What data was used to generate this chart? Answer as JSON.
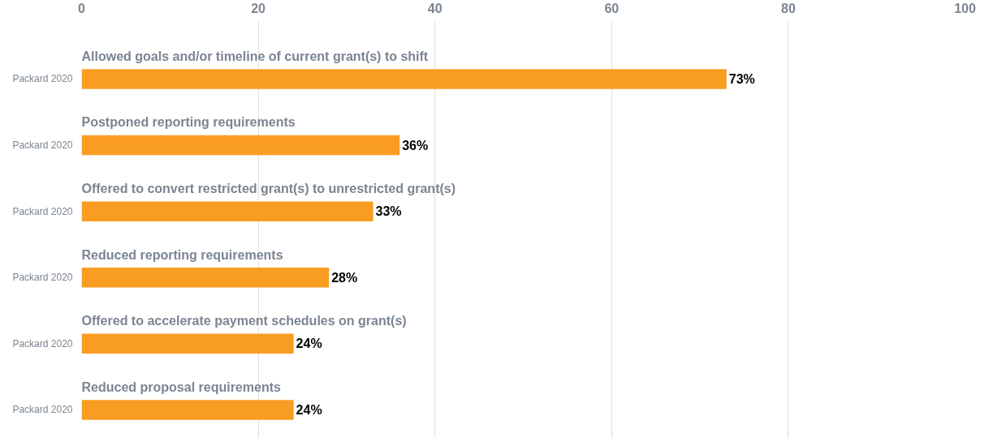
{
  "chart_data": {
    "type": "bar",
    "orientation": "horizontal",
    "categories": [
      "Allowed goals and/or timeline of current grant(s) to shift",
      "Postponed reporting requirements",
      "Offered to convert restricted grant(s) to unrestricted grant(s)",
      "Reduced reporting requirements",
      "Offered to accelerate payment schedules on grant(s)",
      "Reduced proposal requirements"
    ],
    "series": [
      {
        "name": "Packard 2020",
        "color": "#f89c22",
        "values": [
          73,
          36,
          33,
          28,
          24,
          24
        ],
        "value_labels": [
          "73%",
          "36%",
          "33%",
          "28%",
          "24%",
          "24%"
        ]
      }
    ],
    "xlim": [
      0,
      100
    ],
    "xticks": [
      0,
      20,
      40,
      60,
      80,
      100
    ],
    "grid": "x"
  }
}
